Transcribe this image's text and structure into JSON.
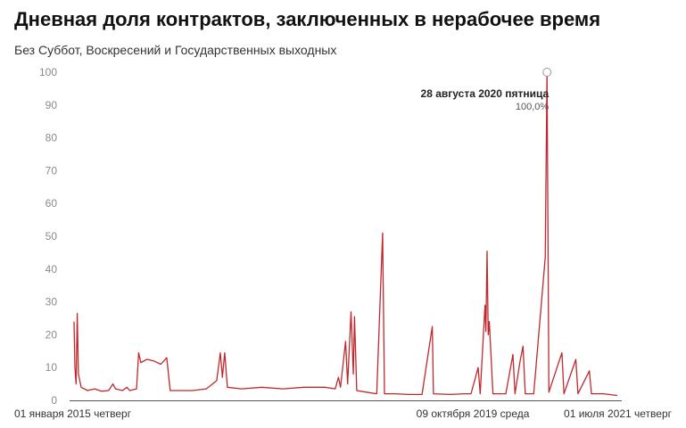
{
  "chart_data": {
    "type": "line",
    "title": "Дневная доля контрактов, заключенных в нерабочее время",
    "subtitle": "Без Суббот, Воскресений и Государственных выходных",
    "xlabel": "",
    "ylabel": "",
    "ylim": [
      0,
      100
    ],
    "y_ticks": [
      0,
      10,
      20,
      30,
      40,
      50,
      60,
      70,
      80,
      90,
      100
    ],
    "x_range": [
      "2015-01-01",
      "2021-07-01"
    ],
    "x_tick_labels": [
      {
        "date": "2015-01-01",
        "label": "01 января 2015 четверг"
      },
      {
        "date": "2019-10-09",
        "label": "09 октября 2019 среда"
      },
      {
        "date": "2021-07-01",
        "label": "01 июля 2021 четверг"
      }
    ],
    "grid": false,
    "line_color": "#c0282d",
    "annotation": {
      "date": "2020-08-28",
      "label": "28 августа 2020 пятница",
      "value_label": "100,0%",
      "value": 100
    },
    "series": [
      {
        "points": [
          [
            "2015-01-01",
            24.0
          ],
          [
            "2015-01-05",
            10.0
          ],
          [
            "2015-01-10",
            5.0
          ],
          [
            "2015-01-15",
            26.5
          ],
          [
            "2015-01-20",
            8.0
          ],
          [
            "2015-02-01",
            4.0
          ],
          [
            "2015-03-01",
            3.0
          ],
          [
            "2015-04-01",
            3.5
          ],
          [
            "2015-05-01",
            2.8
          ],
          [
            "2015-06-01",
            3.0
          ],
          [
            "2015-06-20",
            5.0
          ],
          [
            "2015-07-01",
            3.5
          ],
          [
            "2015-08-01",
            3.0
          ],
          [
            "2015-08-20",
            4.0
          ],
          [
            "2015-09-01",
            3.0
          ],
          [
            "2015-10-01",
            3.5
          ],
          [
            "2015-10-10",
            14.5
          ],
          [
            "2015-10-20",
            11.5
          ],
          [
            "2015-11-15",
            12.5
          ],
          [
            "2015-12-15",
            12.0
          ],
          [
            "2016-01-15",
            11.0
          ],
          [
            "2016-02-10",
            13.0
          ],
          [
            "2016-02-25",
            3.0
          ],
          [
            "2016-04-01",
            3.0
          ],
          [
            "2016-06-01",
            3.0
          ],
          [
            "2016-08-01",
            3.5
          ],
          [
            "2016-09-15",
            6.0
          ],
          [
            "2016-10-01",
            14.5
          ],
          [
            "2016-10-10",
            7.0
          ],
          [
            "2016-10-20",
            14.5
          ],
          [
            "2016-11-01",
            4.0
          ],
          [
            "2017-01-01",
            3.5
          ],
          [
            "2017-04-01",
            4.0
          ],
          [
            "2017-07-01",
            3.5
          ],
          [
            "2017-10-01",
            4.0
          ],
          [
            "2018-01-01",
            4.0
          ],
          [
            "2018-02-15",
            3.5
          ],
          [
            "2018-03-01",
            7.0
          ],
          [
            "2018-03-10",
            4.0
          ],
          [
            "2018-04-01",
            18.0
          ],
          [
            "2018-04-10",
            5.0
          ],
          [
            "2018-04-25",
            27.0
          ],
          [
            "2018-05-05",
            8.0
          ],
          [
            "2018-05-10",
            25.5
          ],
          [
            "2018-05-20",
            3.0
          ],
          [
            "2018-07-01",
            2.5
          ],
          [
            "2018-08-15",
            2.0
          ],
          [
            "2018-09-10",
            51.0
          ],
          [
            "2018-09-18",
            2.0
          ],
          [
            "2018-11-01",
            2.0
          ],
          [
            "2019-01-01",
            1.8
          ],
          [
            "2019-03-01",
            1.8
          ],
          [
            "2019-04-15",
            22.5
          ],
          [
            "2019-04-20",
            2.0
          ],
          [
            "2019-07-01",
            1.8
          ],
          [
            "2019-09-01",
            2.0
          ],
          [
            "2019-10-01",
            2.0
          ],
          [
            "2019-11-01",
            10.0
          ],
          [
            "2019-11-10",
            2.0
          ],
          [
            "2019-12-01",
            29.0
          ],
          [
            "2019-12-05",
            21.0
          ],
          [
            "2019-12-10",
            45.5
          ],
          [
            "2019-12-15",
            20.0
          ],
          [
            "2019-12-20",
            24.0
          ],
          [
            "2020-01-05",
            2.0
          ],
          [
            "2020-03-01",
            2.0
          ],
          [
            "2020-04-01",
            14.0
          ],
          [
            "2020-04-10",
            2.0
          ],
          [
            "2020-05-01",
            11.5
          ],
          [
            "2020-05-15",
            16.5
          ],
          [
            "2020-05-25",
            2.0
          ],
          [
            "2020-07-01",
            2.0
          ],
          [
            "2020-08-20",
            43.5
          ],
          [
            "2020-08-28",
            100.0
          ],
          [
            "2020-09-05",
            2.5
          ],
          [
            "2020-11-01",
            14.5
          ],
          [
            "2020-11-10",
            2.0
          ],
          [
            "2021-01-01",
            12.5
          ],
          [
            "2021-01-10",
            2.0
          ],
          [
            "2021-03-01",
            9.0
          ],
          [
            "2021-03-10",
            2.0
          ],
          [
            "2021-05-01",
            2.0
          ],
          [
            "2021-07-01",
            1.5
          ]
        ]
      }
    ]
  }
}
